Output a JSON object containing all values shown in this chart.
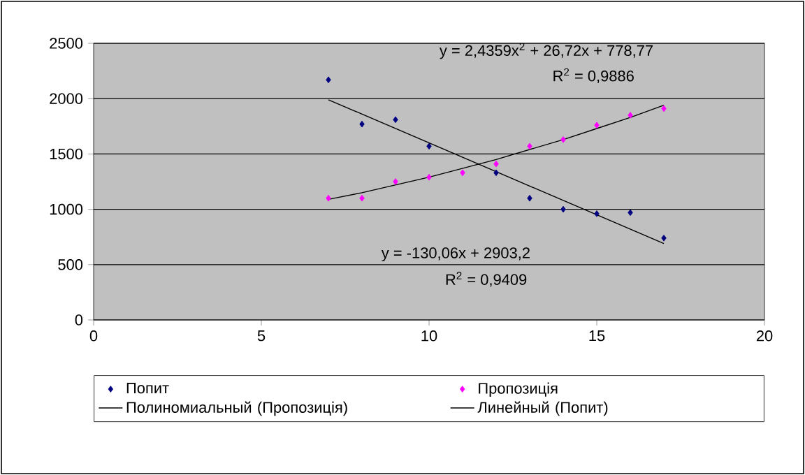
{
  "chart_data": {
    "type": "scatter",
    "grid": "y",
    "legend": "bottom",
    "xlim": [
      0,
      20
    ],
    "xticks": [
      0,
      5,
      10,
      15,
      20
    ],
    "ylim": [
      0,
      2500
    ],
    "yticks": [
      0,
      500,
      1000,
      1500,
      2000,
      2500
    ],
    "series": [
      {
        "name": "Попит",
        "marker": "diamond",
        "color": "#000080",
        "x": [
          7,
          8,
          9,
          10,
          12,
          13,
          14,
          15,
          16,
          17
        ],
        "values": [
          2170,
          1770,
          1810,
          1570,
          1330,
          1100,
          1000,
          960,
          970,
          740
        ]
      },
      {
        "name": "Пропозиція",
        "marker": "diamond",
        "color": "#ff00ff",
        "x": [
          7,
          8,
          9,
          10,
          11,
          12,
          13,
          14,
          15,
          16,
          17
        ],
        "values": [
          1100,
          1100,
          1250,
          1290,
          1330,
          1410,
          1570,
          1630,
          1760,
          1850,
          1910
        ]
      },
      {
        "name": "Полиномиальный (Пропозиція)",
        "type": "line",
        "marker": "none",
        "color": "#000000",
        "x": [
          7,
          8,
          9,
          10,
          11,
          12,
          13,
          14,
          15,
          16,
          17
        ],
        "values": [
          1090,
          1150,
          1220,
          1290,
          1370,
          1450,
          1540,
          1630,
          1730,
          1830,
          1940
        ]
      },
      {
        "name": "Линейный (Попит)",
        "type": "line",
        "marker": "none",
        "color": "#000000",
        "x": [
          7,
          17
        ],
        "values": [
          1990,
          690
        ]
      }
    ],
    "annotations": [
      "y = 2,4359x$^{2}$ + 26,72x + 778,77",
      "R$^{2}$ = 0,9886",
      "y = -130,06x + 2903,2",
      "R$^{2}$ = 0,9409"
    ]
  }
}
